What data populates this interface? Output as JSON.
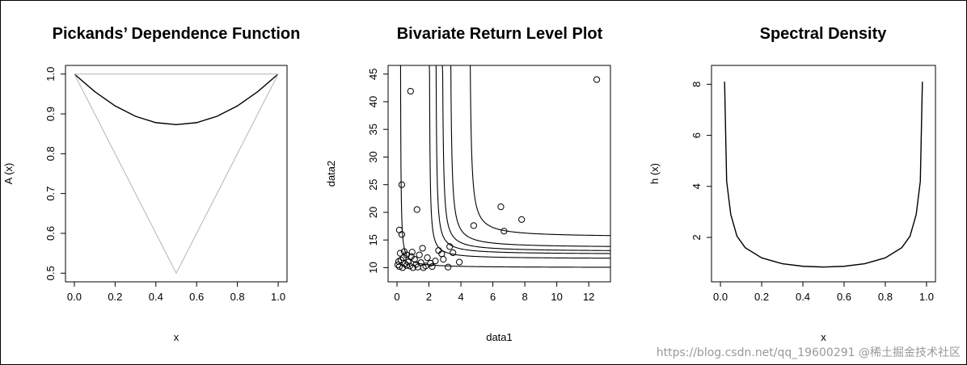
{
  "watermark": "https://blog.csdn.net/qq_19600291 @稀土掘金技术社区",
  "chart_data": [
    {
      "type": "line",
      "title": "Pickands’ Dependence Function",
      "xlabel": "x",
      "ylabel": "A (x)",
      "xlim": [
        0,
        1
      ],
      "ylim": [
        0.5,
        1.0
      ],
      "x_ticks": [
        "0.0",
        "0.2",
        "0.4",
        "0.6",
        "0.8",
        "1.0"
      ],
      "y_ticks": [
        "0.5",
        "0.6",
        "0.7",
        "0.8",
        "0.9",
        "1.0"
      ],
      "grid": false,
      "series": [
        {
          "color": "#000000",
          "x": [
            0.0,
            0.1,
            0.2,
            0.3,
            0.4,
            0.5,
            0.6,
            0.7,
            0.8,
            0.9,
            1.0
          ],
          "y": [
            1.0,
            0.956,
            0.92,
            0.894,
            0.878,
            0.873,
            0.878,
            0.894,
            0.92,
            0.956,
            1.0
          ]
        },
        {
          "color": "#bbbbbb",
          "x": [
            0.0,
            0.5,
            1.0
          ],
          "y": [
            1.0,
            0.5,
            1.0
          ]
        },
        {
          "color": "#bbbbbb",
          "x": [
            0.0,
            1.0
          ],
          "y": [
            1.0,
            1.0
          ]
        }
      ]
    },
    {
      "type": "scatter",
      "title": "Bivariate Return Level Plot",
      "xlabel": "data1",
      "ylabel": "data2",
      "xlim": [
        0,
        12.8
      ],
      "ylim": [
        9,
        45
      ],
      "x_ticks": [
        "0",
        "2",
        "4",
        "6",
        "8",
        "10",
        "12"
      ],
      "y_ticks": [
        "10",
        "15",
        "20",
        "25",
        "30",
        "35",
        "40",
        "45"
      ],
      "grid": false,
      "points": [
        [
          0.85,
          41.9
        ],
        [
          12.5,
          44.0
        ],
        [
          0.3,
          25.0
        ],
        [
          1.25,
          20.5
        ],
        [
          0.15,
          16.8
        ],
        [
          0.3,
          16.0
        ],
        [
          6.5,
          21.0
        ],
        [
          7.8,
          18.7
        ],
        [
          4.8,
          17.6
        ],
        [
          6.7,
          16.6
        ],
        [
          3.3,
          13.8
        ],
        [
          2.6,
          13.1
        ],
        [
          3.5,
          12.7
        ],
        [
          2.8,
          12.5
        ],
        [
          3.9,
          11.0
        ],
        [
          1.6,
          13.5
        ],
        [
          1.4,
          12.3
        ],
        [
          1.9,
          11.8
        ],
        [
          2.4,
          11.2
        ],
        [
          2.1,
          10.8
        ],
        [
          0.9,
          12.0
        ],
        [
          1.1,
          11.5
        ],
        [
          0.6,
          12.3
        ],
        [
          0.4,
          11.8
        ],
        [
          0.2,
          12.6
        ],
        [
          0.1,
          11.1
        ],
        [
          0.5,
          10.7
        ],
        [
          0.8,
          10.3
        ],
        [
          1.2,
          10.6
        ],
        [
          1.5,
          10.9
        ],
        [
          1.8,
          10.3
        ],
        [
          0.15,
          10.2
        ],
        [
          0.35,
          10.0
        ],
        [
          0.6,
          10.4
        ],
        [
          1.0,
          10.0
        ],
        [
          0.25,
          11.4
        ],
        [
          0.7,
          11.0
        ],
        [
          1.3,
          10.1
        ],
        [
          2.2,
          10.2
        ],
        [
          3.2,
          10.1
        ],
        [
          2.9,
          11.5
        ],
        [
          0.05,
          10.5
        ],
        [
          0.45,
          12.9
        ],
        [
          1.65,
          10.0
        ],
        [
          0.95,
          12.8
        ]
      ],
      "contours": [
        {
          "x0": 0.2,
          "y0": 10.0
        },
        {
          "x0": 2.0,
          "y0": 11.6
        },
        {
          "x0": 2.4,
          "y0": 12.4
        },
        {
          "x0": 2.8,
          "y0": 12.9
        },
        {
          "x0": 3.3,
          "y0": 13.6
        },
        {
          "x0": 4.5,
          "y0": 15.5
        }
      ]
    },
    {
      "type": "line",
      "title": "Spectral Density",
      "xlabel": "x",
      "ylabel": "h (x)",
      "xlim": [
        0,
        1
      ],
      "ylim": [
        0.6,
        8.4
      ],
      "x_ticks": [
        "0.0",
        "0.2",
        "0.4",
        "0.6",
        "0.8",
        "1.0"
      ],
      "y_ticks": [
        "2",
        "4",
        "6",
        "8"
      ],
      "grid": false,
      "series": [
        {
          "color": "#000000",
          "x": [
            0.02,
            0.03,
            0.05,
            0.08,
            0.12,
            0.2,
            0.3,
            0.4,
            0.5,
            0.6,
            0.7,
            0.8,
            0.88,
            0.92,
            0.95,
            0.97,
            0.98
          ],
          "y": [
            8.1,
            4.2,
            2.9,
            2.05,
            1.6,
            1.2,
            0.97,
            0.87,
            0.84,
            0.87,
            0.97,
            1.2,
            1.6,
            2.05,
            2.9,
            4.2,
            8.1
          ]
        }
      ]
    }
  ]
}
